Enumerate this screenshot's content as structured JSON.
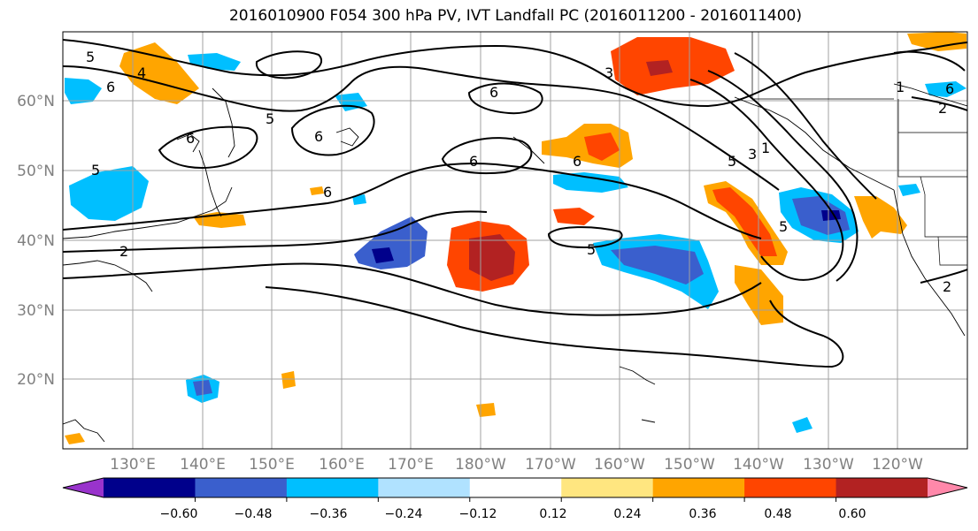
{
  "title": "2016010900 F054 300 hPa PV, IVT Landfall PC (2016011200 - 2016011400)",
  "lat_labels": [
    "60°N",
    "50°N",
    "40°N",
    "30°N",
    "20°N"
  ],
  "lon_labels": [
    "130°E",
    "140°E",
    "150°E",
    "160°E",
    "170°E",
    "180°W",
    "170°W",
    "160°W",
    "150°W",
    "140°W",
    "130°W",
    "120°W"
  ],
  "colorbar": {
    "ticks": [
      "−0.60",
      "−0.48",
      "−0.36",
      "−0.24",
      "−0.12",
      "0.12",
      "0.24",
      "0.36",
      "0.48",
      "0.60"
    ],
    "colors": [
      "#9933cc",
      "#00008b",
      "#3a5fcd",
      "#00bfff",
      "#b0e2ff",
      "#ffffff",
      "#ffe680",
      "#ffa500",
      "#ff4500",
      "#b22222",
      "#ff88aa"
    ]
  },
  "contour_labels": [
    "5",
    "6",
    "4",
    "5",
    "6",
    "5",
    "6",
    "6",
    "2",
    "6",
    "6",
    "3",
    "6",
    "5",
    "5",
    "3",
    "1",
    "5",
    "6",
    "2",
    "1",
    "2"
  ]
}
